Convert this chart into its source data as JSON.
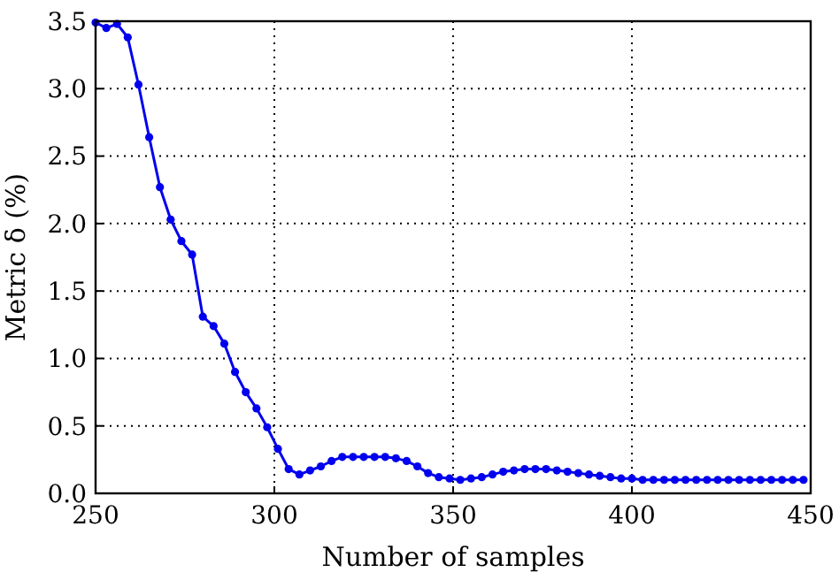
{
  "chart_data": {
    "type": "line",
    "xlabel": "Number of samples",
    "ylabel": "Metric δ (%)",
    "xlim": [
      250,
      450
    ],
    "ylim": [
      0,
      3.5
    ],
    "xticks": [
      250,
      300,
      350,
      400,
      450
    ],
    "yticks": [
      {
        "value": 0,
        "label": "0.0"
      },
      {
        "value": 0.5,
        "label": "0.5"
      },
      {
        "value": 1,
        "label": "1.0"
      },
      {
        "value": 1.5,
        "label": "1.5"
      },
      {
        "value": 2,
        "label": "2.0"
      },
      {
        "value": 2.5,
        "label": "2.5"
      },
      {
        "value": 3,
        "label": "3.0"
      },
      {
        "value": 3.5,
        "label": "3.5"
      }
    ],
    "grid": true,
    "marker": "circle",
    "line_style": "solid",
    "x": [
      250,
      253,
      256,
      259,
      262,
      265,
      268,
      271,
      274,
      277,
      280,
      283,
      286,
      289,
      292,
      295,
      298,
      301,
      304,
      307,
      310,
      313,
      316,
      319,
      322,
      325,
      328,
      331,
      334,
      337,
      340,
      343,
      346,
      349,
      352,
      355,
      358,
      361,
      364,
      367,
      370,
      373,
      376,
      379,
      382,
      385,
      388,
      391,
      394,
      397,
      400,
      403,
      406,
      409,
      412,
      415,
      418,
      421,
      424,
      427,
      430,
      433,
      436,
      439,
      442,
      445,
      448
    ],
    "series": [
      {
        "color": "#0000ee",
        "values": [
          3.49,
          3.45,
          3.48,
          3.38,
          3.03,
          2.64,
          2.27,
          2.03,
          1.87,
          1.77,
          1.31,
          1.24,
          1.11,
          0.9,
          0.75,
          0.63,
          0.49,
          0.33,
          0.18,
          0.14,
          0.17,
          0.2,
          0.24,
          0.27,
          0.27,
          0.27,
          0.27,
          0.27,
          0.26,
          0.24,
          0.2,
          0.15,
          0.12,
          0.11,
          0.1,
          0.11,
          0.12,
          0.14,
          0.16,
          0.17,
          0.18,
          0.18,
          0.18,
          0.17,
          0.16,
          0.15,
          0.14,
          0.13,
          0.12,
          0.11,
          0.11,
          0.1,
          0.1,
          0.1,
          0.1,
          0.1,
          0.1,
          0.1,
          0.1,
          0.1,
          0.1,
          0.1,
          0.1,
          0.1,
          0.1,
          0.1,
          0.1
        ]
      }
    ]
  }
}
